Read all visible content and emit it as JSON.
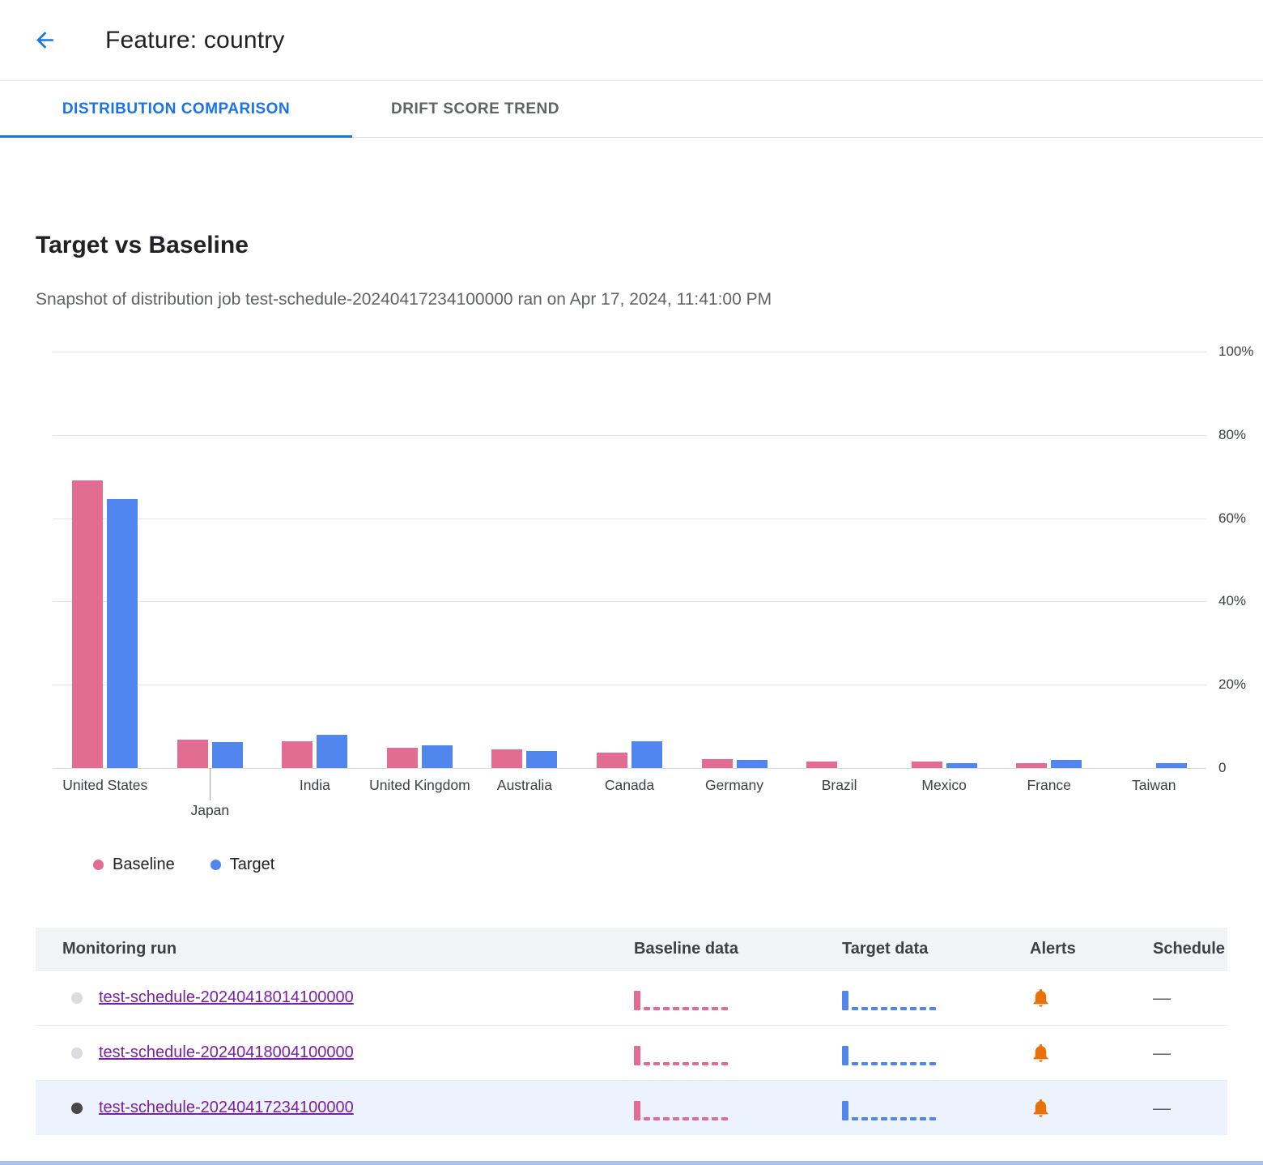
{
  "header": {
    "title": "Feature: country"
  },
  "tabs": [
    {
      "label": "DISTRIBUTION COMPARISON",
      "active": true
    },
    {
      "label": "DRIFT SCORE TREND",
      "active": false
    }
  ],
  "section": {
    "title": "Target vs Baseline",
    "subtitle": "Snapshot of distribution job test-schedule-20240417234100000 ran on Apr 17, 2024, 11:41:00 PM"
  },
  "chart_data": {
    "type": "bar",
    "title": "Target vs Baseline",
    "categories": [
      "United States",
      "Japan",
      "India",
      "United Kingdom",
      "Australia",
      "Canada",
      "Germany",
      "Brazil",
      "Mexico",
      "France",
      "Taiwan"
    ],
    "series": [
      {
        "name": "Baseline",
        "color": "#e26c92",
        "values": [
          69,
          6.8,
          6.4,
          4.9,
          4.5,
          3.7,
          2.1,
          1.6,
          1.6,
          1.2,
          0
        ]
      },
      {
        "name": "Target",
        "color": "#5186ef",
        "values": [
          64.5,
          6.2,
          8.0,
          5.4,
          4.1,
          6.4,
          1.9,
          0,
          1.2,
          1.9,
          1.2
        ]
      }
    ],
    "xlabel": "",
    "ylabel": "",
    "ylim": [
      0,
      100
    ],
    "ytick_values": [
      100,
      80,
      60,
      40,
      20,
      0
    ],
    "ytick_labels": [
      "100%",
      "80%",
      "60%",
      "40%",
      "20%",
      "0"
    ],
    "grid": true,
    "legend_position": "bottom-left"
  },
  "table": {
    "columns": [
      "Monitoring run",
      "Baseline data",
      "Target data",
      "Alerts",
      "Schedule"
    ],
    "spark_values": [
      68,
      7,
      6,
      5,
      5,
      4,
      2,
      2,
      2,
      1
    ],
    "rows": [
      {
        "run": "test-schedule-20240418014100000",
        "selected": false,
        "alert": true,
        "schedule": "—"
      },
      {
        "run": "test-schedule-20240418004100000",
        "selected": false,
        "alert": true,
        "schedule": "—"
      },
      {
        "run": "test-schedule-20240417234100000",
        "selected": true,
        "alert": true,
        "schedule": "—"
      }
    ]
  },
  "colors": {
    "accent": "#1a73e8",
    "baseline": "#e26c92",
    "target": "#5186ef",
    "alert_bell": "#e8710a",
    "link": "#7b1fa2",
    "selected_row_bg": "#edf3fd"
  }
}
